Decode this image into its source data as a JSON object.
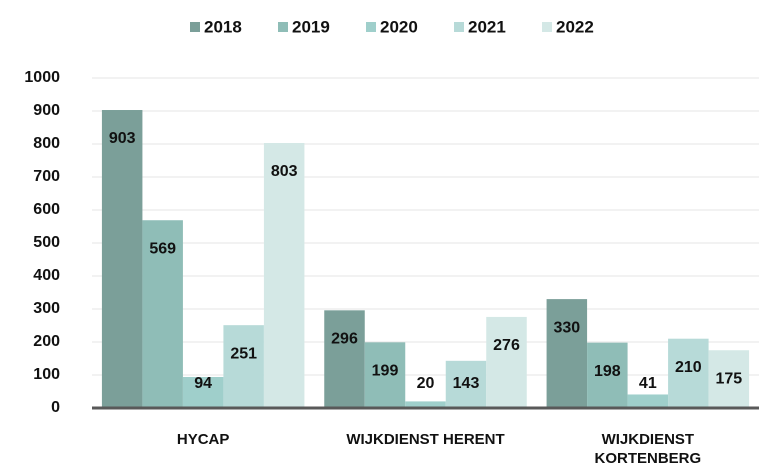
{
  "chart_data": {
    "type": "bar",
    "categories": [
      "HYCAP",
      "WIJKDIENST HERENT",
      "WIJKDIENST KORTENBERG"
    ],
    "series": [
      {
        "name": "2018",
        "color": "#7b9f99",
        "values": [
          903,
          296,
          330
        ]
      },
      {
        "name": "2019",
        "color": "#8fbdb7",
        "values": [
          569,
          199,
          198
        ]
      },
      {
        "name": "2020",
        "color": "#9fcfcb",
        "values": [
          94,
          20,
          41
        ]
      },
      {
        "name": "2021",
        "color": "#b7dad8",
        "values": [
          251,
          143,
          210
        ]
      },
      {
        "name": "2022",
        "color": "#d4e8e6",
        "values": [
          803,
          276,
          175
        ]
      }
    ],
    "ylim": [
      0,
      1000
    ],
    "yticks": [
      0,
      100,
      200,
      300,
      400,
      500,
      600,
      700,
      800,
      900,
      1000
    ],
    "grid": true,
    "legend": "top"
  }
}
